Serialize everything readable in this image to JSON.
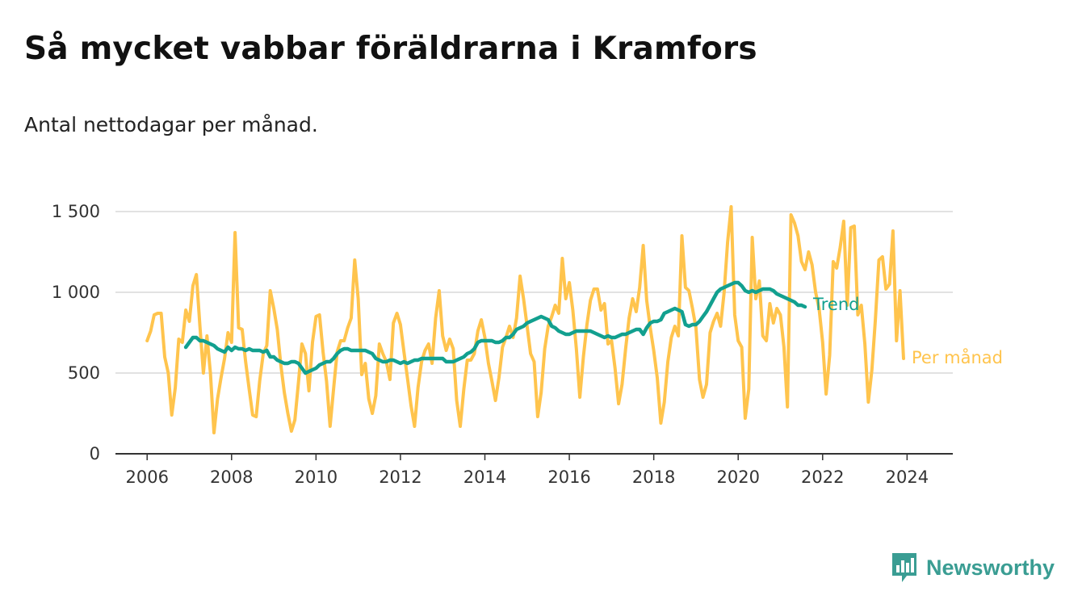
{
  "title": "Så mycket vabbar föräldrarna i Kramfors",
  "subtitle": "Antal nettodagar per månad.",
  "brand": {
    "name": "Newsworthy",
    "icon": "newsworthy-logo-icon"
  },
  "colors": {
    "monthly": "#ffc44d",
    "trend": "#12a08f",
    "grid": "#d9d9d9",
    "axis": "#333333",
    "brand": "#3a9d93"
  },
  "chart_data": {
    "type": "line",
    "x_axis": {
      "range": [
        "2005-04",
        "2025-02"
      ],
      "ticks": [
        "2006",
        "2008",
        "2010",
        "2012",
        "2014",
        "2016",
        "2018",
        "2020",
        "2022",
        "2024"
      ]
    },
    "y_axis": {
      "range": [
        0,
        1500
      ],
      "ticks": [
        0,
        500,
        1000,
        1500
      ],
      "tick_labels": [
        "0",
        "500",
        "1 000",
        "1 500"
      ]
    },
    "grid": true,
    "legend": "inline labels at line ends",
    "series": [
      {
        "name": "Per månad",
        "start": "2006-01",
        "frequency": "monthly",
        "values": [
          700,
          760,
          860,
          870,
          870,
          600,
          500,
          240,
          410,
          710,
          690,
          890,
          820,
          1040,
          1110,
          790,
          500,
          730,
          500,
          130,
          340,
          470,
          590,
          750,
          690,
          1370,
          780,
          770,
          570,
          400,
          240,
          230,
          450,
          620,
          670,
          1010,
          900,
          770,
          550,
          380,
          250,
          140,
          210,
          440,
          680,
          620,
          390,
          690,
          850,
          860,
          630,
          450,
          170,
          400,
          630,
          700,
          700,
          780,
          840,
          1200,
          960,
          490,
          560,
          340,
          250,
          360,
          680,
          620,
          570,
          460,
          810,
          870,
          800,
          630,
          470,
          300,
          170,
          410,
          570,
          640,
          680,
          560,
          840,
          1010,
          730,
          640,
          710,
          650,
          330,
          170,
          400,
          580,
          580,
          620,
          760,
          830,
          720,
          560,
          450,
          330,
          470,
          660,
          720,
          790,
          720,
          840,
          1100,
          960,
          790,
          620,
          570,
          230,
          380,
          650,
          790,
          850,
          920,
          870,
          1210,
          960,
          1060,
          890,
          650,
          350,
          600,
          800,
          950,
          1020,
          1020,
          890,
          930,
          680,
          700,
          530,
          310,
          430,
          650,
          840,
          960,
          880,
          1030,
          1290,
          950,
          780,
          640,
          470,
          190,
          320,
          570,
          720,
          790,
          730,
          1350,
          1030,
          1010,
          900,
          780,
          460,
          350,
          430,
          750,
          820,
          870,
          790,
          1000,
          1310,
          1530,
          860,
          700,
          660,
          220,
          400,
          1340,
          960,
          1070,
          730,
          700,
          930,
          810,
          900,
          860,
          660,
          290,
          1480,
          1430,
          1350,
          1190,
          1140,
          1250,
          1170,
          1000,
          900,
          690,
          370,
          610,
          1190,
          1150,
          1280,
          1440,
          920,
          1400,
          1410,
          860,
          920,
          680,
          320,
          520,
          830,
          1200,
          1220,
          1020,
          1050,
          1380,
          700,
          1010,
          590
        ]
      },
      {
        "name": "Trend",
        "start": "2006-12",
        "frequency": "monthly",
        "values": [
          660,
          690,
          720,
          720,
          700,
          700,
          690,
          680,
          670,
          650,
          640,
          630,
          660,
          640,
          660,
          650,
          650,
          640,
          650,
          640,
          640,
          640,
          630,
          640,
          600,
          600,
          580,
          570,
          560,
          560,
          570,
          570,
          560,
          530,
          500,
          510,
          520,
          530,
          550,
          560,
          570,
          570,
          590,
          620,
          640,
          650,
          650,
          640,
          640,
          640,
          640,
          640,
          630,
          620,
          590,
          580,
          570,
          570,
          580,
          580,
          570,
          560,
          570,
          560,
          570,
          580,
          580,
          590,
          590,
          590,
          590,
          590,
          590,
          590,
          570,
          570,
          570,
          580,
          590,
          600,
          620,
          630,
          650,
          690,
          700,
          700,
          700,
          700,
          690,
          690,
          700,
          720,
          720,
          740,
          770,
          780,
          790,
          810,
          820,
          830,
          840,
          850,
          840,
          830,
          790,
          780,
          760,
          750,
          740,
          740,
          750,
          760,
          760,
          760,
          760,
          760,
          750,
          740,
          730,
          720,
          730,
          720,
          720,
          730,
          740,
          740,
          750,
          760,
          770,
          770,
          740,
          780,
          810,
          820,
          820,
          830,
          870,
          880,
          890,
          900,
          890,
          880,
          800,
          790,
          800,
          800,
          820,
          850,
          880,
          920,
          960,
          1000,
          1020,
          1030,
          1040,
          1050,
          1060,
          1060,
          1040,
          1010,
          1000,
          1010,
          1000,
          1010,
          1020,
          1020,
          1020,
          1010,
          990,
          980,
          970,
          960,
          950,
          940,
          920,
          920,
          910
        ]
      }
    ]
  }
}
